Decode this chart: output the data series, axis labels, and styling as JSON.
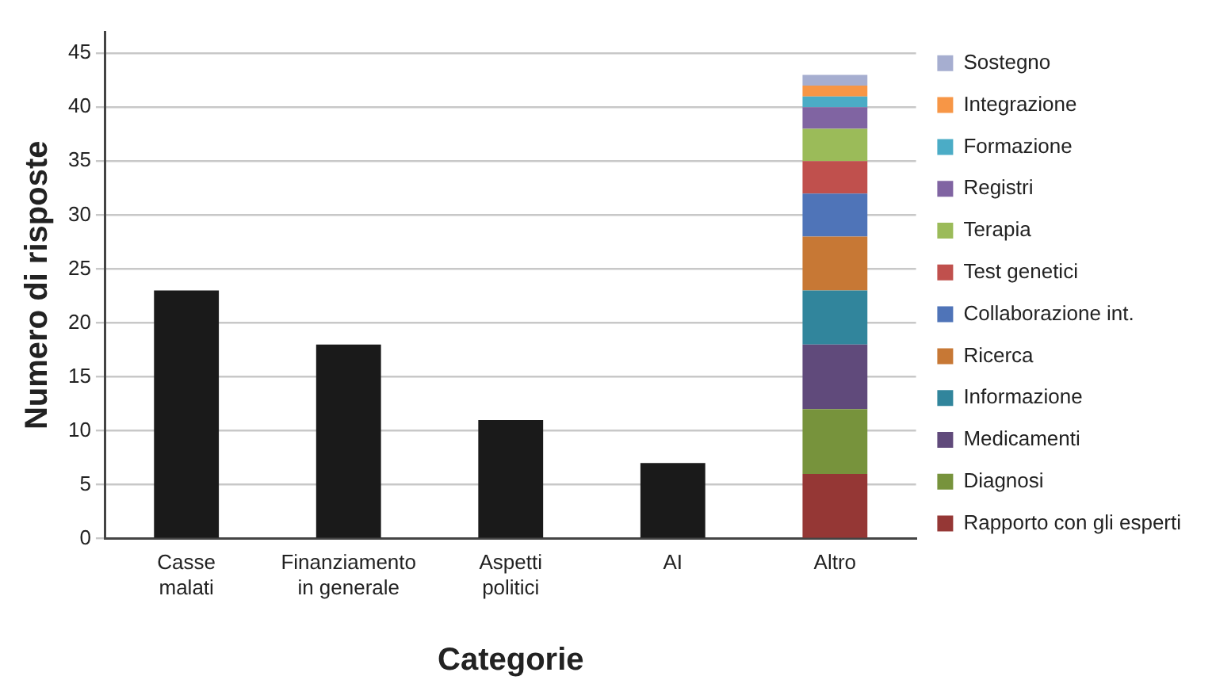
{
  "chart_data": {
    "type": "bar",
    "stacked": true,
    "xlabel": "Categorie",
    "ylabel": "Numero di risposte",
    "categories": [
      "Casse malati",
      "Finanziamento in generale",
      "Aspetti politici",
      "AI",
      "Altro"
    ],
    "ylim": [
      0,
      47
    ],
    "yticks": [
      0,
      5,
      10,
      15,
      20,
      25,
      30,
      35,
      40,
      45
    ],
    "grid": "y",
    "legend": "right",
    "series": [
      {
        "color": "#1a1a1a",
        "values": [
          23,
          18,
          11,
          7,
          null
        ]
      },
      {
        "name": "Rapporto con gli esperti",
        "color": "#953735",
        "values": [
          null,
          null,
          null,
          null,
          6
        ]
      },
      {
        "name": "Diagnosi",
        "color": "#77933c",
        "values": [
          null,
          null,
          null,
          null,
          6
        ]
      },
      {
        "name": "Medicamenti",
        "color": "#604a7b",
        "values": [
          null,
          null,
          null,
          null,
          6
        ]
      },
      {
        "name": "Informazione",
        "color": "#31859c",
        "values": [
          null,
          null,
          null,
          null,
          5
        ]
      },
      {
        "name": "Ricerca",
        "color": "#c77835",
        "values": [
          null,
          null,
          null,
          null,
          5
        ]
      },
      {
        "name": "Collaborazione int.",
        "color": "#4f74b8",
        "values": [
          null,
          null,
          null,
          null,
          4
        ]
      },
      {
        "name": "Test genetici",
        "color": "#c0504d",
        "values": [
          null,
          null,
          null,
          null,
          3
        ]
      },
      {
        "name": "Terapia",
        "color": "#9bbb59",
        "values": [
          null,
          null,
          null,
          null,
          3
        ]
      },
      {
        "name": "Registri",
        "color": "#8064a2",
        "values": [
          null,
          null,
          null,
          null,
          2
        ]
      },
      {
        "name": "Formazione",
        "color": "#4bacc6",
        "values": [
          null,
          null,
          null,
          null,
          1
        ]
      },
      {
        "name": "Integrazione",
        "color": "#f79646",
        "values": [
          null,
          null,
          null,
          null,
          1
        ]
      },
      {
        "name": "Sostegno",
        "color": "#a6aed0",
        "values": [
          null,
          null,
          null,
          null,
          1
        ]
      }
    ]
  }
}
